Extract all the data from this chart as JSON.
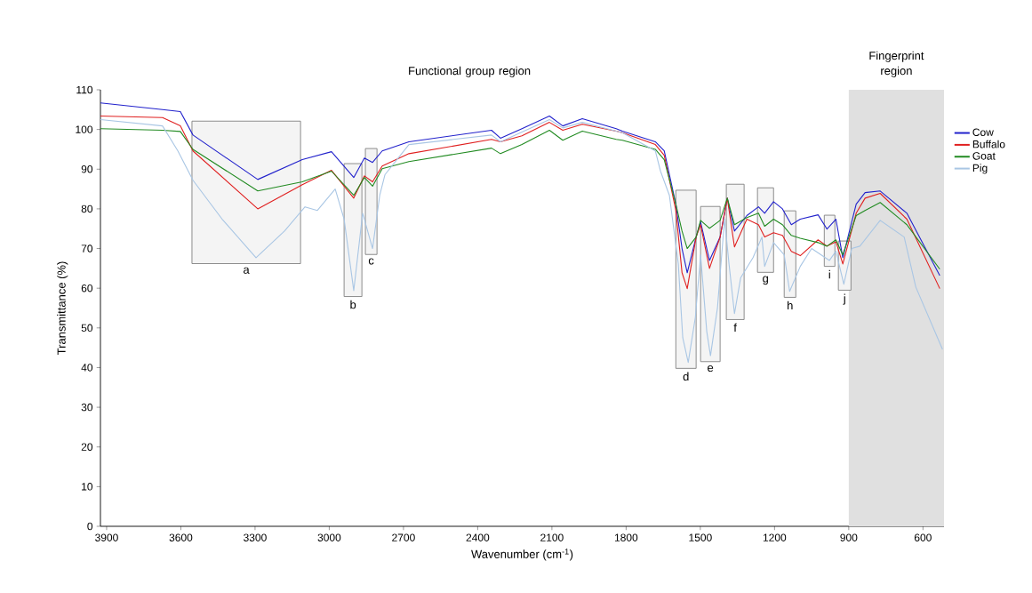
{
  "chart_data": {
    "type": "line",
    "xlabel": "Wavenumber (cm$^{-1}$)",
    "ylabel": "Transmittance (%)",
    "xlim": [
      3925,
      515
    ],
    "ylim": [
      0,
      110
    ],
    "xticks": [
      3900,
      3600,
      3300,
      3000,
      2700,
      2400,
      2100,
      1800,
      1500,
      1200,
      900,
      600
    ],
    "yticks": [
      0,
      10,
      20,
      30,
      40,
      50,
      60,
      70,
      80,
      90,
      100,
      110
    ],
    "legend": "right",
    "grid": false,
    "marker": "none",
    "line_style": "solid",
    "bands": [
      {
        "axis": "x",
        "from": 900,
        "to": 515,
        "label": "Fingerprint region",
        "color": "#e0e0e0"
      },
      {
        "axis": "x",
        "from": 3555,
        "to": 3116,
        "label": "a",
        "color": "#f4f4f4"
      },
      {
        "axis": "x",
        "from": 2940,
        "to": 2868,
        "label": "b",
        "color": "#f4f4f4"
      },
      {
        "axis": "x",
        "from": 2854,
        "to": 2807,
        "label": "c",
        "color": "#f4f4f4"
      },
      {
        "axis": "x",
        "from": 1599,
        "to": 1517,
        "label": "d",
        "color": "#f4f4f4"
      },
      {
        "axis": "x",
        "from": 1499,
        "to": 1420,
        "label": "e",
        "color": "#f4f4f4"
      },
      {
        "axis": "x",
        "from": 1395,
        "to": 1323,
        "label": "f",
        "color": "#f4f4f4"
      },
      {
        "axis": "x",
        "from": 1269,
        "to": 1204,
        "label": "g",
        "color": "#f4f4f4"
      },
      {
        "axis": "x",
        "from": 1161,
        "to": 1114,
        "label": "h",
        "color": "#f4f4f4"
      },
      {
        "axis": "x",
        "from": 999,
        "to": 956,
        "label": "i",
        "color": "#f4f4f4"
      },
      {
        "axis": "x",
        "from": 942,
        "to": 891,
        "label": "j",
        "color": "#f4f4f4"
      }
    ],
    "annotations": [
      "Functional group region"
    ],
    "series": [
      {
        "name": "Cow",
        "color": "#2222cc",
        "x": [
          3925,
          3674,
          3602,
          3551,
          3289,
          3109,
          2991,
          2901,
          2858,
          2825,
          2786,
          2678,
          2344,
          2308,
          2221,
          2110,
          2056,
          1977,
          1840,
          1815,
          1682,
          1646,
          1599,
          1574,
          1553,
          1517,
          1499,
          1463,
          1420,
          1391,
          1362,
          1312,
          1265,
          1240,
          1204,
          1168,
          1132,
          1096,
          1024,
          988,
          952,
          924,
          870,
          834,
          773,
          665,
          532
        ],
        "values": [
          106.7,
          105,
          104.5,
          98.6,
          87.4,
          92.4,
          94.4,
          87.9,
          92.8,
          91.7,
          94.6,
          96.9,
          99.8,
          97.8,
          100.2,
          103.4,
          100.9,
          102.7,
          100.2,
          99.6,
          96.9,
          94.6,
          81.2,
          70,
          63.9,
          72.9,
          76.7,
          67,
          72.9,
          82.7,
          74.4,
          78.3,
          80.5,
          78.9,
          81.8,
          80,
          76,
          77.4,
          78.5,
          74.9,
          77.4,
          67.7,
          81.2,
          84.1,
          84.5,
          78.9,
          63.2
        ]
      },
      {
        "name": "Buffalo",
        "color": "#e02020",
        "x": [
          3925,
          3674,
          3602,
          3551,
          3289,
          3109,
          2991,
          2901,
          2858,
          2825,
          2786,
          2678,
          2344,
          2308,
          2221,
          2110,
          2056,
          1977,
          1840,
          1815,
          1682,
          1646,
          1599,
          1574,
          1553,
          1517,
          1499,
          1463,
          1420,
          1391,
          1362,
          1312,
          1265,
          1240,
          1204,
          1168,
          1132,
          1096,
          1024,
          988,
          952,
          924,
          870,
          834,
          773,
          665,
          532
        ],
        "values": [
          103.4,
          103,
          100.9,
          94.6,
          80,
          86.1,
          89.7,
          82.7,
          88.3,
          86.8,
          90.8,
          93.9,
          97.5,
          96.9,
          98.4,
          101.8,
          99.8,
          101.3,
          99.6,
          99.2,
          96.2,
          93.5,
          79.6,
          63.9,
          59.9,
          72.9,
          76,
          65,
          72.9,
          82.7,
          70.4,
          77.4,
          76,
          72.9,
          74,
          73.3,
          69.3,
          68.2,
          72.2,
          70.6,
          71.7,
          66.1,
          78.9,
          82.7,
          83.9,
          77.4,
          59.9
        ]
      },
      {
        "name": "Goat",
        "color": "#228b22",
        "x": [
          3925,
          3674,
          3602,
          3551,
          3289,
          3109,
          2991,
          2901,
          2858,
          2825,
          2786,
          2678,
          2344,
          2308,
          2221,
          2110,
          2056,
          1977,
          1840,
          1815,
          1682,
          1646,
          1599,
          1574,
          1553,
          1517,
          1499,
          1463,
          1420,
          1391,
          1362,
          1312,
          1265,
          1240,
          1204,
          1168,
          1132,
          1096,
          1024,
          988,
          952,
          924,
          870,
          834,
          773,
          665,
          532
        ],
        "values": [
          100.2,
          99.8,
          99.5,
          95,
          84.5,
          86.8,
          89.5,
          83.4,
          87.9,
          85.7,
          90.1,
          91.9,
          95.3,
          93.9,
          96.2,
          99.8,
          97.3,
          99.6,
          97.5,
          97.3,
          95,
          92.4,
          81.2,
          74.4,
          70,
          72.9,
          77.1,
          75.1,
          77.1,
          82.7,
          76,
          77.8,
          78.9,
          75.6,
          77.4,
          76,
          73.3,
          72.6,
          71.5,
          70.6,
          72.2,
          68.4,
          78.3,
          79.6,
          81.6,
          76,
          64.8
        ]
      },
      {
        "name": "Pig",
        "color": "#a9c6e4",
        "x": [
          3925,
          3674,
          3612,
          3551,
          3433,
          3296,
          3181,
          3098,
          3048,
          2976,
          2940,
          2901,
          2865,
          2825,
          2796,
          2775,
          2678,
          2344,
          2308,
          2110,
          2056,
          1977,
          1840,
          1815,
          1682,
          1661,
          1625,
          1589,
          1571,
          1549,
          1520,
          1499,
          1474,
          1459,
          1431,
          1402,
          1384,
          1362,
          1337,
          1287,
          1251,
          1240,
          1204,
          1161,
          1139,
          1096,
          1050,
          978,
          952,
          920,
          888,
          855,
          773,
          676,
          629,
          521
        ],
        "values": [
          102.5,
          100.9,
          94.6,
          87.2,
          77.4,
          67.7,
          74.4,
          80.5,
          79.6,
          85,
          77.4,
          59.4,
          78.9,
          70,
          83.4,
          88.6,
          96.2,
          98.6,
          96.9,
          102.5,
          100.4,
          101.8,
          99.6,
          99.2,
          94.6,
          89.5,
          83.4,
          66.1,
          47.5,
          41.3,
          52.7,
          68.4,
          49.1,
          43,
          54.9,
          77.4,
          66.1,
          53.6,
          62.6,
          67.7,
          72.9,
          65.5,
          71.5,
          68.4,
          59.2,
          65.5,
          70,
          67,
          69.3,
          61,
          70,
          70.6,
          77.1,
          72.9,
          60.3,
          44.6
        ]
      }
    ]
  }
}
